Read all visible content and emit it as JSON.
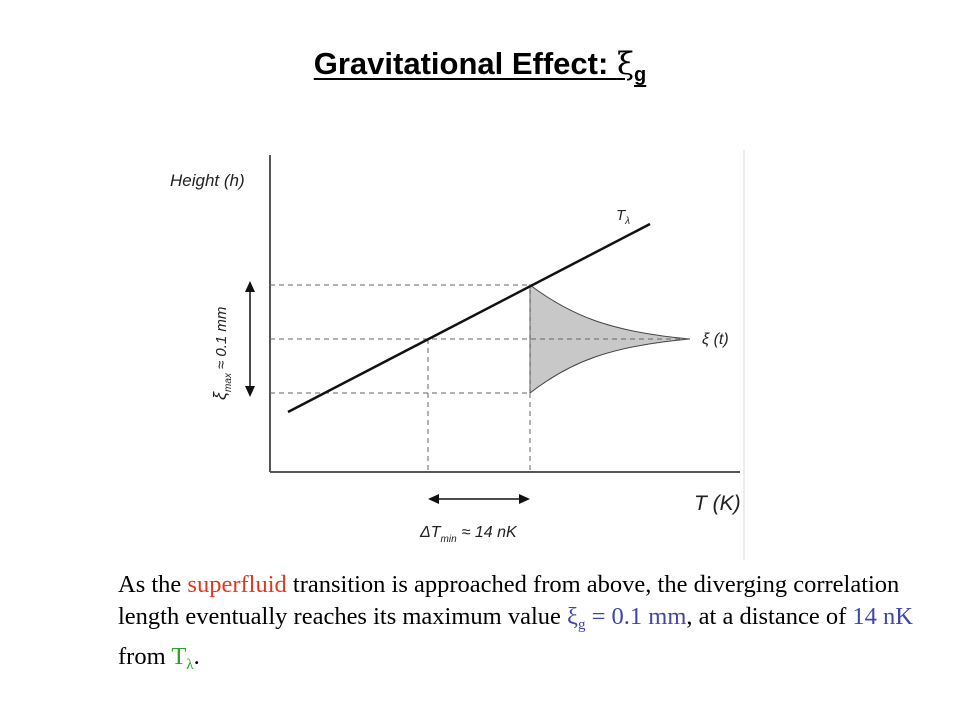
{
  "title": {
    "text": "Gravitational Effect: ",
    "symbol": "ξ",
    "subscript": "g"
  },
  "figure": {
    "y_axis_label": "Height (h)",
    "x_axis_label": "T (K)",
    "line_label": "T",
    "line_label_sub": "λ",
    "curve_label": "ξ (t)",
    "vertical_arrow_label_symbol": "ξ",
    "vertical_arrow_label_sub": "max",
    "vertical_arrow_label_value": "≈ 0.1 mm",
    "horizontal_arrow_label_prefix": "ΔT",
    "horizontal_arrow_label_sub": "min",
    "horizontal_arrow_label_value": "≈ 14 nK"
  },
  "caption": {
    "part1": "As the ",
    "superfluid": "superfluid",
    "part2": " transition is approached from above, the diverging correlation length eventually reaches its maximum value ",
    "xi": "ξ",
    "xi_sub": "g",
    "eq": " = 0.1 mm",
    "part3": ", at a distance of ",
    "nk": "14 nK",
    "part4": " from ",
    "t": "T",
    "t_sub": "λ",
    "end": "."
  },
  "colors": {
    "red": "#e0391c",
    "blue": "#3f46a8",
    "green": "#2aa32a",
    "shade": "#c8c8c8"
  }
}
